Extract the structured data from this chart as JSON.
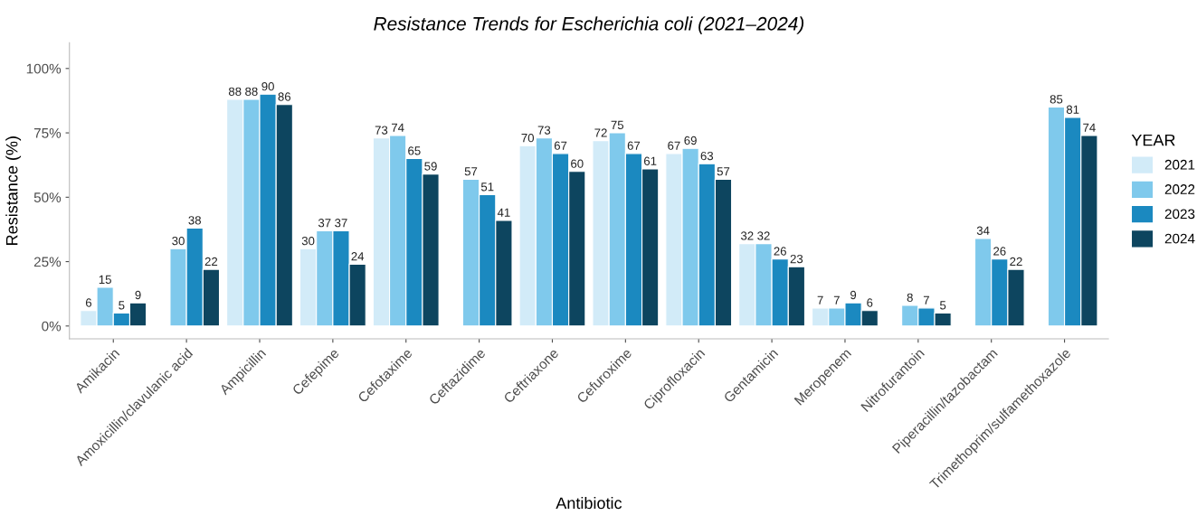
{
  "chart_data": {
    "type": "bar",
    "title": "Resistance Trends for Escherichia coli (2021–2024)",
    "xlabel": "Antibiotic",
    "ylabel": "Resistance (%)",
    "legend_title": "YEAR",
    "categories": [
      "Amikacin",
      "Amoxicillin/clavulanic acid",
      "Ampicillin",
      "Cefepime",
      "Cefotaxime",
      "Ceftazidime",
      "Ceftriaxone",
      "Cefuroxime",
      "Ciprofloxacin",
      "Gentamicin",
      "Meropenem",
      "Nitrofurantoin",
      "Piperacillin/tazobactam",
      "Trimethoprim/sulfamethoxazole"
    ],
    "series": [
      {
        "name": "2021",
        "color": "#d2ebf8",
        "values": [
          6,
          null,
          88,
          30,
          73,
          null,
          70,
          72,
          67,
          32,
          7,
          null,
          null,
          null
        ]
      },
      {
        "name": "2022",
        "color": "#7fc9ec",
        "values": [
          15,
          30,
          88,
          37,
          74,
          57,
          73,
          75,
          69,
          32,
          7,
          8,
          34,
          85
        ]
      },
      {
        "name": "2023",
        "color": "#1b89c0",
        "values": [
          5,
          38,
          90,
          37,
          65,
          51,
          67,
          67,
          63,
          26,
          9,
          7,
          26,
          81
        ]
      },
      {
        "name": "2024",
        "color": "#0d455f",
        "values": [
          9,
          22,
          86,
          24,
          59,
          41,
          60,
          61,
          57,
          23,
          6,
          5,
          22,
          74
        ]
      }
    ],
    "ylim": [
      -5,
      110
    ],
    "yticks": [
      {
        "value": 0,
        "label": "0%"
      },
      {
        "value": 25,
        "label": "25%"
      },
      {
        "value": 50,
        "label": "50%"
      },
      {
        "value": 75,
        "label": "75%"
      },
      {
        "value": 100,
        "label": "100%"
      }
    ],
    "data_labels": true,
    "legend": "right",
    "grid": false
  }
}
